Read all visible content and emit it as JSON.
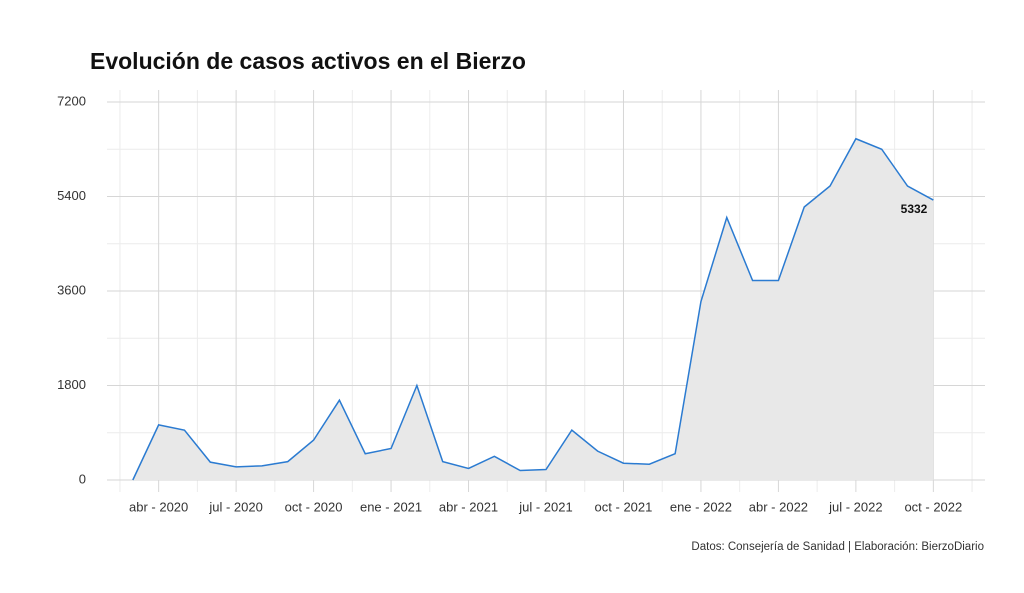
{
  "chart_data": {
    "type": "line",
    "title": "Evolución de casos activos en el Bierzo",
    "source": "Datos: Consejería de Sanidad | Elaboración: BierzoDiario",
    "x": [
      "2020-03",
      "2020-04",
      "2020-05",
      "2020-06",
      "2020-07",
      "2020-08",
      "2020-09",
      "2020-10",
      "2020-11",
      "2020-12",
      "2021-01",
      "2021-02",
      "2021-03",
      "2021-04",
      "2021-05",
      "2021-06",
      "2021-07",
      "2021-08",
      "2021-09",
      "2021-10",
      "2021-11",
      "2021-12",
      "2022-01",
      "2022-02",
      "2022-03",
      "2022-04",
      "2022-05",
      "2022-06",
      "2022-07",
      "2022-08",
      "2022-09",
      "2022-10"
    ],
    "series": [
      {
        "name": "Casos activos",
        "color": "#2b7bd1",
        "fill": "#e8e8e8",
        "values": [
          0,
          1050,
          950,
          340,
          250,
          270,
          350,
          760,
          1520,
          500,
          600,
          1800,
          350,
          220,
          450,
          180,
          200,
          950,
          550,
          320,
          300,
          500,
          3400,
          5000,
          3800,
          3800,
          5200,
          5600,
          6500,
          6300,
          5600,
          5332
        ]
      }
    ],
    "last_label": "chart_data.series.0.values.31",
    "xlim": [
      "2020-02",
      "2022-12"
    ],
    "xticks": [
      {
        "value": "2020-04",
        "label": "abr - 2020"
      },
      {
        "value": "2020-07",
        "label": "jul - 2020"
      },
      {
        "value": "2020-10",
        "label": "oct - 2020"
      },
      {
        "value": "2021-01",
        "label": "ene - 2021"
      },
      {
        "value": "2021-04",
        "label": "abr - 2021"
      },
      {
        "value": "2021-07",
        "label": "jul - 2021"
      },
      {
        "value": "2021-10",
        "label": "oct - 2021"
      },
      {
        "value": "2022-01",
        "label": "ene - 2022"
      },
      {
        "value": "2022-04",
        "label": "abr - 2022"
      },
      {
        "value": "2022-07",
        "label": "jul - 2022"
      },
      {
        "value": "2022-10",
        "label": "oct - 2022"
      }
    ],
    "ylim": [
      0,
      7200
    ],
    "yticks": [
      0,
      1800,
      3600,
      5400,
      7200
    ],
    "grid": true
  }
}
